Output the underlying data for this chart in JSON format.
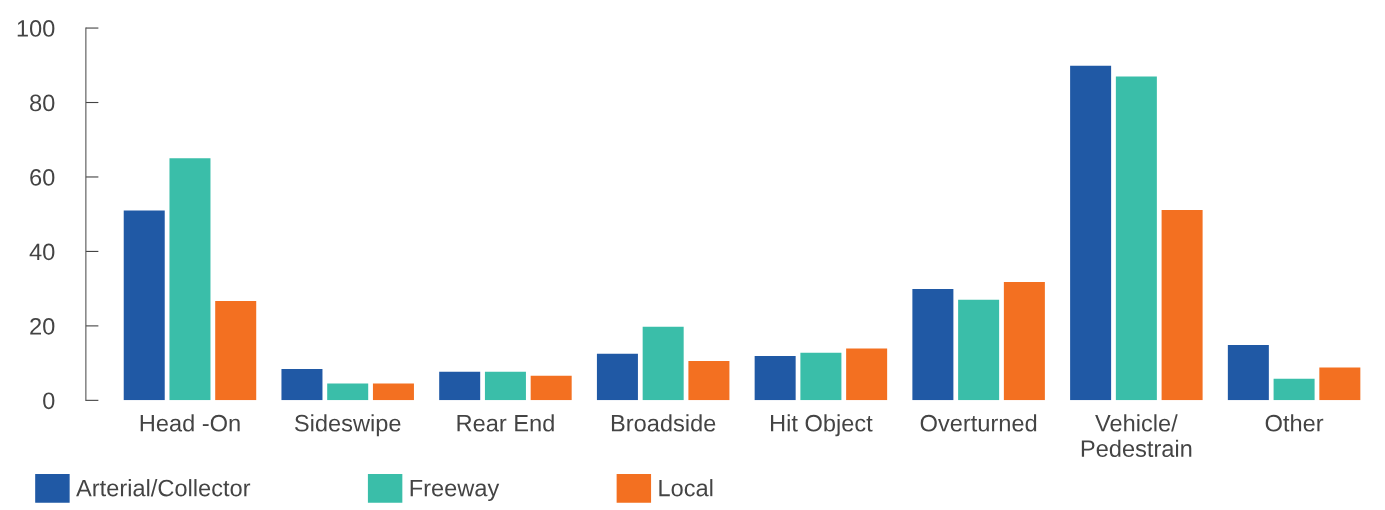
{
  "chart_data": {
    "type": "bar",
    "categories": [
      "Head -On",
      "Sideswipe",
      "Rear End",
      "Broadside",
      "Hit Object",
      "Overturned",
      "Vehicle/\nPedestrain",
      "Other"
    ],
    "series": [
      {
        "name": "Arterial/Collector",
        "color": "#2059a5",
        "values": [
          51,
          8.4,
          7.7,
          12.5,
          11.9,
          29.9,
          89.9,
          14.9
        ]
      },
      {
        "name": "Freeway",
        "color": "#3abea9",
        "values": [
          65,
          4.5,
          7.7,
          19.8,
          12.8,
          27,
          87,
          5.8
        ]
      },
      {
        "name": "Local",
        "color": "#f37021",
        "values": [
          26.7,
          4.5,
          6.6,
          10.6,
          13.9,
          31.8,
          51.1,
          8.8
        ]
      }
    ],
    "ylim": [
      0,
      100
    ],
    "yticks": [
      0,
      20,
      40,
      60,
      80,
      100
    ],
    "grid": false,
    "legend": "bottom left"
  }
}
